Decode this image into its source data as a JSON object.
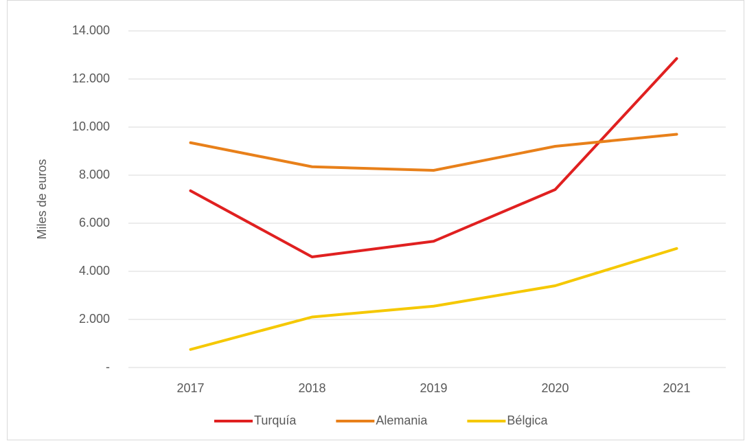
{
  "chart_data": {
    "type": "line",
    "y_label": "Miles de euros",
    "categories": [
      "2017",
      "2018",
      "2019",
      "2020",
      "2021"
    ],
    "series": [
      {
        "name": "Turquía",
        "color": "#e02020",
        "values": [
          7350,
          4600,
          5250,
          7400,
          12850
        ]
      },
      {
        "name": "Alemania",
        "color": "#e8801a",
        "values": [
          9350,
          8350,
          8200,
          9200,
          9700
        ]
      },
      {
        "name": "Bélgica",
        "color": "#f5c800",
        "values": [
          750,
          2100,
          2550,
          3400,
          4950
        ]
      }
    ],
    "ylim": [
      0,
      14000
    ],
    "yticks": [
      {
        "value": 0,
        "label": "-"
      },
      {
        "value": 2000,
        "label": "2.000"
      },
      {
        "value": 4000,
        "label": "4.000"
      },
      {
        "value": 6000,
        "label": "6.000"
      },
      {
        "value": 8000,
        "label": "8.000"
      },
      {
        "value": 10000,
        "label": "10.000"
      },
      {
        "value": 12000,
        "label": "12.000"
      },
      {
        "value": 14000,
        "label": "14.000"
      }
    ],
    "grid": true,
    "legend": "bottom"
  }
}
